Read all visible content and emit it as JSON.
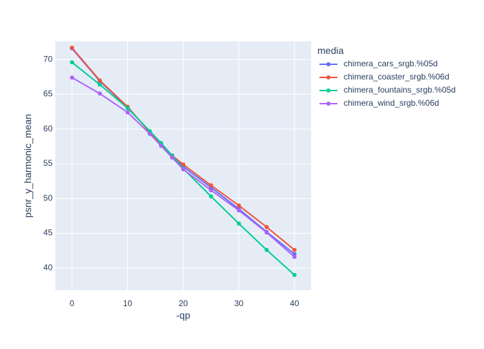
{
  "chart_data": {
    "type": "line",
    "title": "",
    "xlabel": "-qp",
    "ylabel": "psnr_y_harmonic_mean",
    "xlim": [
      -3,
      43
    ],
    "ylim": [
      36.8,
      72.6
    ],
    "xticks": [
      0,
      10,
      20,
      30,
      40
    ],
    "yticks": [
      40,
      45,
      50,
      55,
      60,
      65,
      70
    ],
    "grid": true,
    "legend": {
      "title": "media",
      "placement": "right"
    },
    "series": [
      {
        "name": "chimera_cars_srgb.%05d",
        "color": "#636efa",
        "x": [
          0,
          5,
          10,
          14,
          16,
          18,
          20,
          25,
          30,
          35,
          40
        ],
        "y": [
          71.6,
          66.9,
          63.1,
          59.6,
          57.8,
          56.2,
          54.6,
          51.6,
          48.5,
          45.2,
          42.0
        ]
      },
      {
        "name": "chimera_coaster_srgb.%06d",
        "color": "#ef553b",
        "x": [
          0,
          5,
          10,
          14,
          16,
          18,
          20,
          25,
          30,
          35,
          40
        ],
        "y": [
          71.7,
          67.0,
          63.2,
          59.5,
          57.9,
          56.2,
          54.9,
          51.9,
          49.0,
          45.9,
          42.6
        ]
      },
      {
        "name": "chimera_fountains_srgb.%05d",
        "color": "#00cc96",
        "x": [
          0,
          5,
          10,
          14,
          16,
          18,
          20,
          25,
          30,
          35,
          40
        ],
        "y": [
          69.6,
          66.4,
          63.0,
          59.7,
          58.0,
          56.2,
          54.3,
          50.3,
          46.4,
          42.6,
          39.0
        ]
      },
      {
        "name": "chimera_wind_srgb.%06d",
        "color": "#ab63fa",
        "x": [
          0,
          5,
          10,
          14,
          16,
          18,
          20,
          25,
          30,
          35,
          40
        ],
        "y": [
          67.4,
          65.1,
          62.4,
          59.3,
          57.6,
          55.9,
          54.2,
          51.2,
          48.3,
          45.1,
          41.6
        ]
      }
    ]
  },
  "colors": {
    "plot_background": "#e5ecf6",
    "grid": "#ffffff",
    "text": "#2a3f5f"
  }
}
